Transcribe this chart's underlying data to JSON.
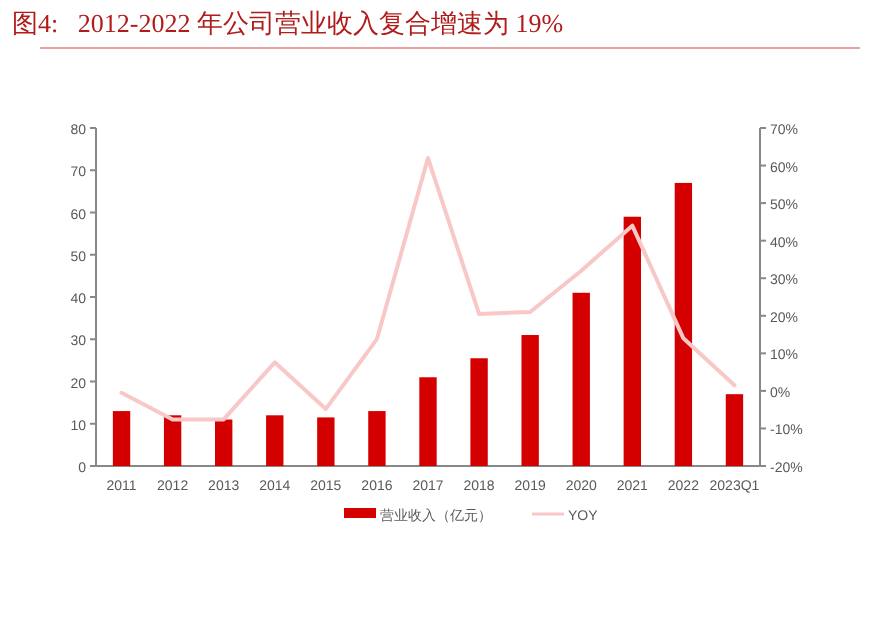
{
  "chart_data": {
    "type": "bar",
    "title": "图4:   2012-2022 年公司营业收入复合增速为 19%",
    "categories": [
      "2011",
      "2012",
      "2013",
      "2014",
      "2015",
      "2016",
      "2017",
      "2018",
      "2019",
      "2020",
      "2021",
      "2022",
      "2023Q1"
    ],
    "series": [
      {
        "name": "营业收入（亿元）",
        "color": "#d40000",
        "values": [
          13,
          12,
          11,
          12,
          11.5,
          13,
          21,
          25.5,
          31,
          41,
          59,
          67,
          17
        ]
      },
      {
        "name": "YOY",
        "type": "line",
        "axis": "y2",
        "color": "#f8c8c8",
        "values": [
          -0.5,
          -7.6,
          -7.6,
          7.6,
          -4.8,
          13.8,
          62,
          20.5,
          21,
          32,
          44,
          14,
          1.5
        ]
      }
    ],
    "ylim": [
      0,
      80
    ],
    "yticks": [
      0,
      10,
      20,
      30,
      40,
      50,
      60,
      70,
      80
    ],
    "y2lim": [
      -20,
      70
    ],
    "y2ticks": [
      {
        "value": -20,
        "label": "-20%"
      },
      {
        "value": -10,
        "label": "-10%"
      },
      {
        "value": 0,
        "label": "0%"
      },
      {
        "value": 10,
        "label": "10%"
      },
      {
        "value": 20,
        "label": "20%"
      },
      {
        "value": 30,
        "label": "30%"
      },
      {
        "value": 40,
        "label": "40%"
      },
      {
        "value": 50,
        "label": "50%"
      },
      {
        "value": 60,
        "label": "60%"
      },
      {
        "value": 70,
        "label": "70%"
      }
    ],
    "legend": "bottom"
  }
}
